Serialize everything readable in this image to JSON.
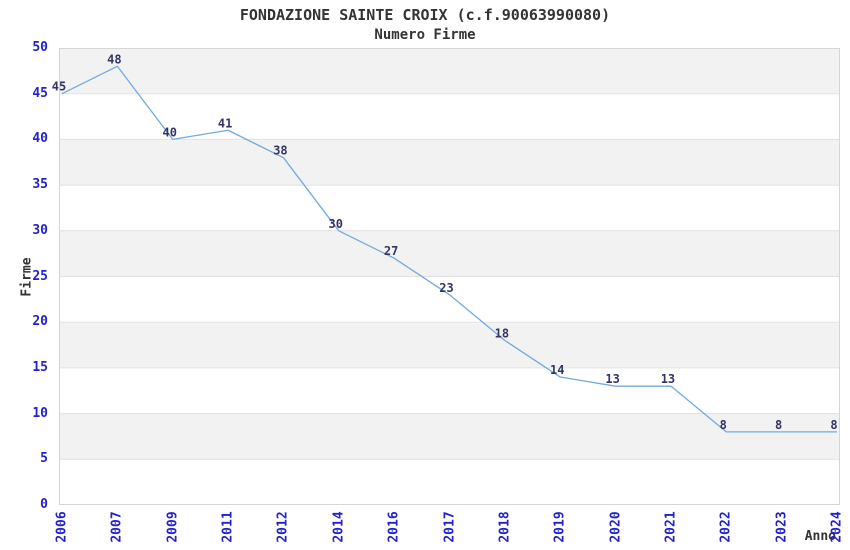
{
  "chart_data": {
    "type": "line",
    "title": "FONDAZIONE SAINTE CROIX (c.f.90063990080)",
    "subtitle": "Numero Firme",
    "xlabel": "Anno",
    "ylabel": "Firme",
    "categories": [
      "2006",
      "2007",
      "2009",
      "2011",
      "2012",
      "2014",
      "2016",
      "2017",
      "2018",
      "2019",
      "2020",
      "2021",
      "2022",
      "2023",
      "2024"
    ],
    "values": [
      45,
      48,
      40,
      41,
      38,
      30,
      27,
      23,
      18,
      14,
      13,
      13,
      8,
      8,
      8
    ],
    "ylim": [
      0,
      50
    ],
    "ytick_step": 5,
    "grid": "horizontal-bands",
    "legend": "none",
    "colors": {
      "line": "#74a9dd",
      "tick_label": "#2222cc",
      "data_label": "#333366",
      "band": "#f2f2f2",
      "gridline": "#e1e1e1",
      "border": "#d6d6d6",
      "text": "#333333",
      "background": "#ffffff"
    }
  }
}
